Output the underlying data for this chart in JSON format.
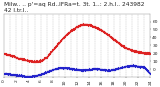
{
  "title_line1": "Milw.. .. p'=aq Rd..lFRa=t. 3t. 1..: 2.h.l.. 243982",
  "title_line2": "42 l.tr.l..",
  "bg_color": "#ffffff",
  "plot_bg": "#ffffff",
  "grid_color": "#aaaaaa",
  "temp_color": "#dd2222",
  "dew_color": "#2222cc",
  "ylim": [
    -10,
    70
  ],
  "yticks": [
    0,
    10,
    20,
    30,
    40,
    50,
    60
  ],
  "xlim": [
    0,
    1440
  ],
  "vgrid_hours": [
    1,
    2,
    3,
    4,
    5,
    6,
    7,
    8,
    9,
    10,
    11,
    12,
    13,
    14,
    15,
    16,
    17,
    18,
    19,
    20,
    21,
    22,
    23
  ],
  "temp_curve_x": [
    0,
    60,
    120,
    180,
    240,
    300,
    360,
    420,
    480,
    540,
    600,
    660,
    720,
    780,
    840,
    900,
    960,
    1020,
    1080,
    1140,
    1200,
    1260,
    1320,
    1380,
    1439
  ],
  "temp_curve_y": [
    20,
    18,
    15,
    13,
    11,
    10,
    11,
    16,
    25,
    34,
    42,
    49,
    54,
    57,
    56,
    53,
    49,
    44,
    38,
    32,
    27,
    24,
    22,
    21,
    20
  ],
  "dew_curve_x": [
    0,
    60,
    120,
    180,
    240,
    300,
    360,
    420,
    480,
    540,
    600,
    660,
    720,
    780,
    840,
    900,
    960,
    1020,
    1080,
    1140,
    1200,
    1260,
    1320,
    1380,
    1439
  ],
  "dew_curve_y": [
    -5,
    -6,
    -7,
    -8,
    -9,
    -8,
    -6,
    -3,
    0,
    2,
    2,
    1,
    0,
    -1,
    0,
    1,
    0,
    -1,
    0,
    2,
    4,
    5,
    4,
    3,
    -5
  ],
  "title_fontsize": 4.2,
  "tick_fontsize": 3.2,
  "marker_size": 0.7,
  "title_color": "#222222",
  "tick_color": "#222222",
  "spine_color": "#888888"
}
